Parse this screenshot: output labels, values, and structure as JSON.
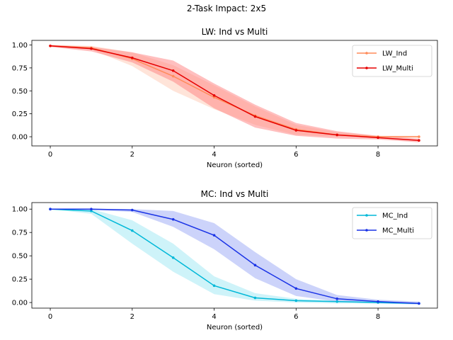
{
  "suptitle": "2-Task Impact: 2x5",
  "chart_data": [
    {
      "type": "line",
      "title": "LW: Ind vs Multi",
      "xlabel": "Neuron (sorted)",
      "ylabel": "",
      "xlim": [
        -0.45,
        9.45
      ],
      "ylim": [
        -0.1,
        1.05
      ],
      "xticks": [
        0,
        2,
        4,
        6,
        8
      ],
      "yticks": [
        "0.00",
        "0.25",
        "0.50",
        "0.75",
        "1.00"
      ],
      "legend_position": "top-right",
      "series": [
        {
          "name": "LW_Ind",
          "color": "#ff8c5a",
          "band_color": "#ffc9b3",
          "x": [
            0,
            1,
            2,
            3,
            4,
            5,
            6,
            7,
            8,
            9
          ],
          "values": [
            0.99,
            0.97,
            0.85,
            0.66,
            0.43,
            0.23,
            0.08,
            0.02,
            0.0,
            0.0
          ],
          "lower": [
            0.98,
            0.95,
            0.77,
            0.5,
            0.3,
            0.13,
            0.02,
            0.0,
            -0.01,
            -0.01
          ],
          "upper": [
            1.0,
            0.99,
            0.92,
            0.78,
            0.56,
            0.33,
            0.13,
            0.05,
            0.01,
            0.01
          ]
        },
        {
          "name": "LW_Multi",
          "color": "#e60000",
          "band_color": "#ff8080",
          "x": [
            0,
            1,
            2,
            3,
            4,
            5,
            6,
            7,
            8,
            9
          ],
          "values": [
            0.99,
            0.96,
            0.86,
            0.72,
            0.45,
            0.22,
            0.07,
            0.02,
            -0.01,
            -0.04
          ],
          "lower": [
            0.98,
            0.93,
            0.81,
            0.6,
            0.31,
            0.1,
            0.01,
            -0.02,
            -0.03,
            -0.06
          ],
          "upper": [
            1.0,
            0.98,
            0.92,
            0.83,
            0.58,
            0.35,
            0.15,
            0.06,
            0.01,
            -0.02
          ]
        }
      ]
    },
    {
      "type": "line",
      "title": "MC: Ind vs Multi",
      "xlabel": "Neuron (sorted)",
      "ylabel": "",
      "xlim": [
        -0.45,
        9.45
      ],
      "ylim": [
        -0.06,
        1.07
      ],
      "xticks": [
        0,
        2,
        4,
        6,
        8
      ],
      "yticks": [
        "0.00",
        "0.25",
        "0.50",
        "0.75",
        "1.00"
      ],
      "legend_position": "top-right",
      "series": [
        {
          "name": "MC_Ind",
          "color": "#00b8d8",
          "band_color": "#9ee8f4",
          "x": [
            0,
            1,
            2,
            3,
            4,
            5,
            6,
            7,
            8,
            9
          ],
          "values": [
            1.0,
            0.98,
            0.77,
            0.48,
            0.18,
            0.05,
            0.02,
            0.01,
            0.0,
            -0.01
          ],
          "lower": [
            1.0,
            0.95,
            0.63,
            0.33,
            0.09,
            0.02,
            0.0,
            -0.01,
            -0.01,
            -0.02
          ],
          "upper": [
            1.0,
            1.0,
            0.88,
            0.63,
            0.28,
            0.1,
            0.04,
            0.02,
            0.01,
            0.0
          ]
        },
        {
          "name": "MC_Multi",
          "color": "#1a33e6",
          "band_color": "#9aa8f5",
          "x": [
            0,
            1,
            2,
            3,
            4,
            5,
            6,
            7,
            8,
            9
          ],
          "values": [
            1.0,
            1.0,
            0.99,
            0.89,
            0.72,
            0.4,
            0.15,
            0.04,
            0.01,
            -0.01
          ],
          "lower": [
            1.0,
            0.99,
            0.97,
            0.81,
            0.57,
            0.26,
            0.07,
            0.01,
            -0.01,
            -0.02
          ],
          "upper": [
            1.0,
            1.0,
            1.0,
            0.98,
            0.85,
            0.54,
            0.25,
            0.08,
            0.03,
            0.01
          ]
        }
      ]
    }
  ]
}
